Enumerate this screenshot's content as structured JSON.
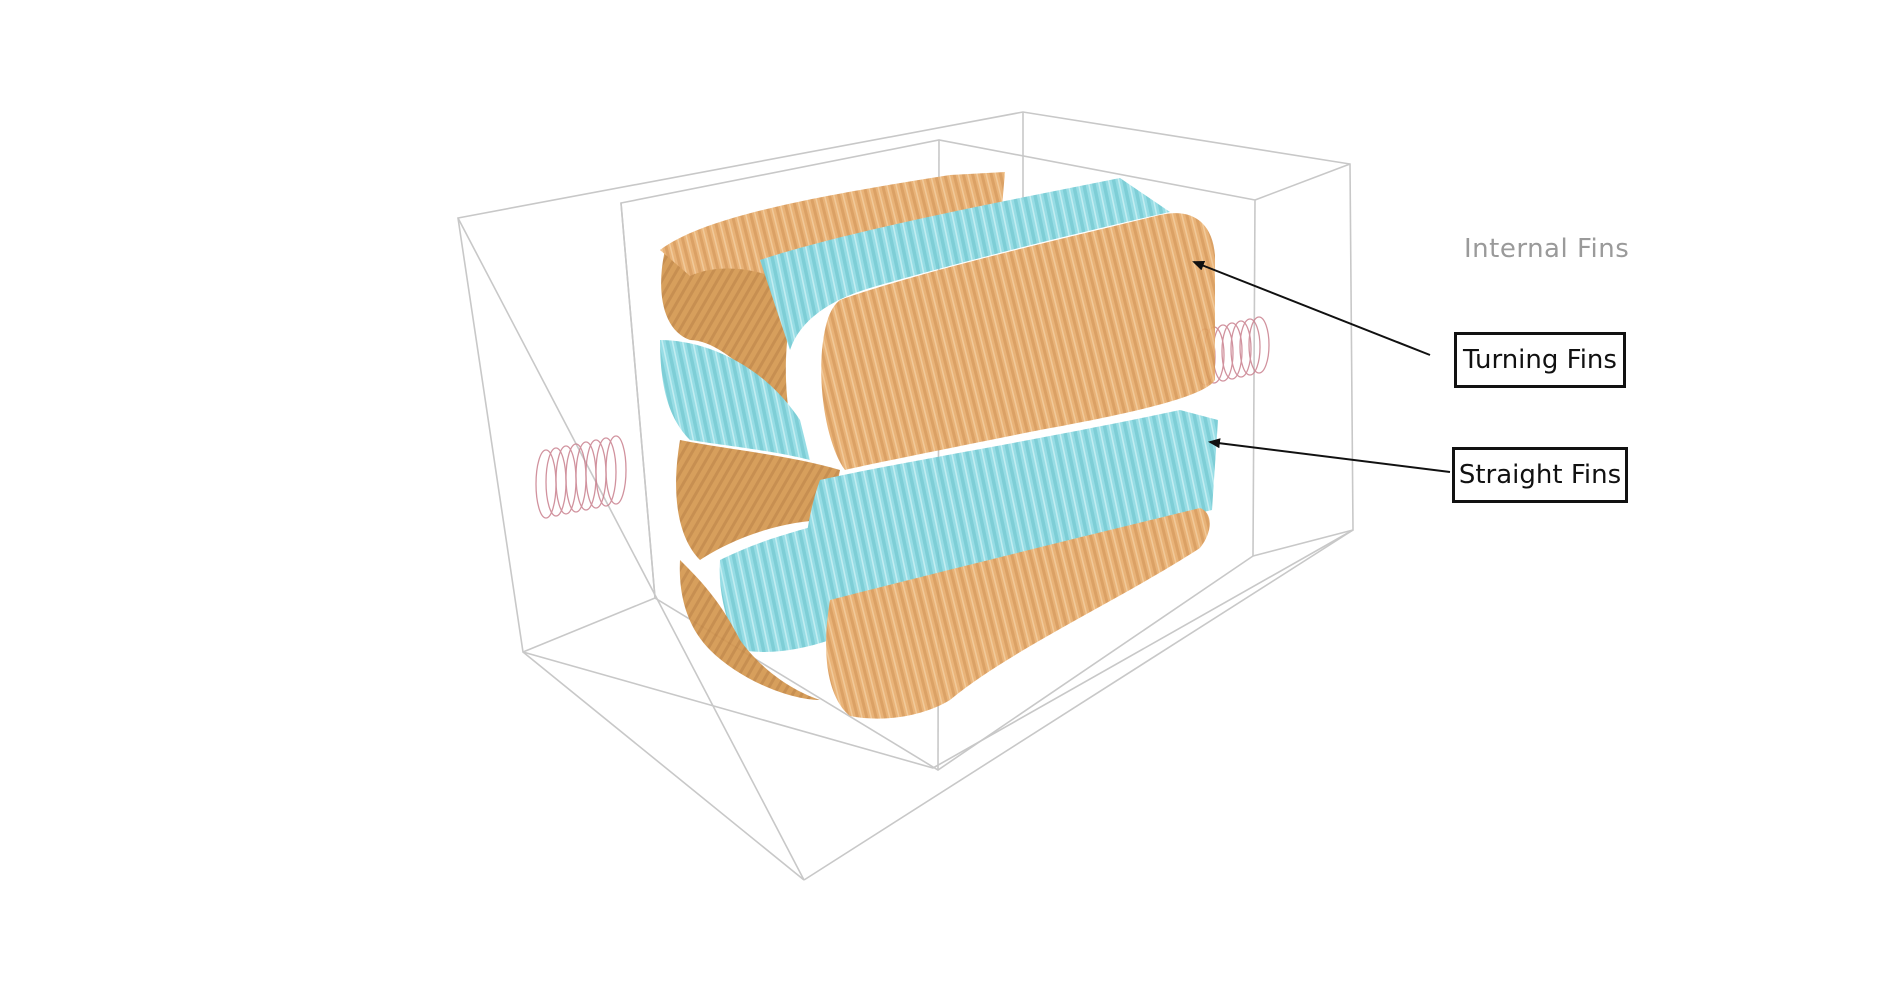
{
  "title": "Internal Fins",
  "callouts": {
    "turning": "Turning Fins",
    "straight": "Straight Fins"
  },
  "colors": {
    "turning_fins": "#e3a562",
    "straight_fins": "#7fd3dc",
    "enclosure_lines": "#c8c8c8",
    "ports": "#c9808e",
    "arrow": "#111111",
    "title_text": "#9a9a9a"
  },
  "icons": {
    "enclosure": "wireframe-box-icon",
    "ports": "pipe-coil-icon"
  }
}
